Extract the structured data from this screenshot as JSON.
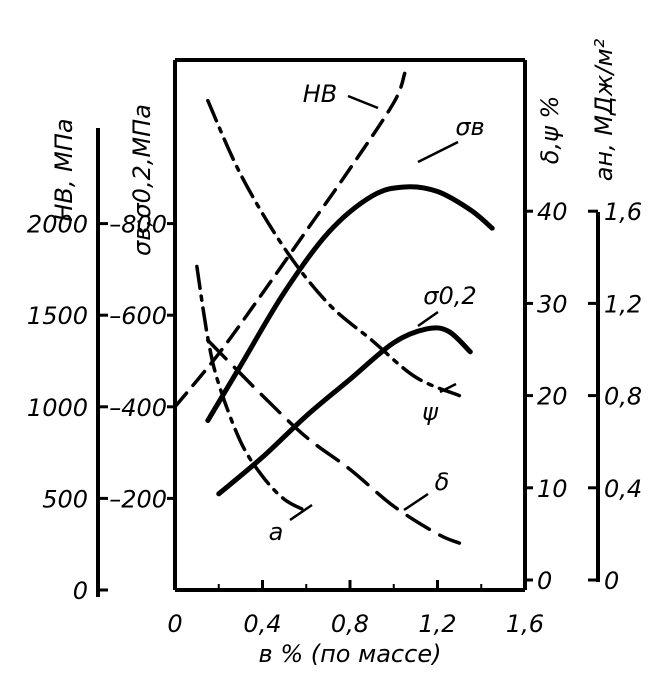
{
  "chart_data": {
    "type": "line",
    "xlabel": "в % (по массе)",
    "xticks": [
      "0",
      "0,4",
      "0,8",
      "1,2",
      "1,6"
    ],
    "xlim": [
      0,
      1.6
    ],
    "axes": {
      "hb": {
        "title": "НВ, МПа",
        "ticks": [
          "0",
          "500",
          "1000",
          "1500",
          "2000"
        ],
        "range": [
          0,
          2500
        ]
      },
      "strength": {
        "title": "σв;σ0,2,МПа",
        "ticks": [
          "200",
          "400",
          "600",
          "800"
        ],
        "range": [
          0,
          1000
        ]
      },
      "ductility": {
        "title": "δ,ψ %",
        "ticks": [
          "0",
          "10",
          "20",
          "30",
          "40"
        ],
        "range": [
          0,
          50
        ]
      },
      "impact": {
        "title": "aн, МДж/м²",
        "ticks": [
          "0",
          "0,4",
          "0,8",
          "1,2",
          "1,6"
        ],
        "range": [
          0,
          2.0
        ]
      }
    },
    "series": [
      {
        "name": "НВ",
        "axis": "hb",
        "style": "dashed",
        "x": [
          0.0,
          0.2,
          0.4,
          0.6,
          0.8,
          1.0,
          1.05
        ],
        "values": [
          1000,
          1290,
          1620,
          1960,
          2300,
          2660,
          2820
        ]
      },
      {
        "name": "σв",
        "axis": "strength",
        "style": "solid",
        "x": [
          0.15,
          0.3,
          0.5,
          0.7,
          0.9,
          1.05,
          1.2,
          1.35,
          1.45
        ],
        "values": [
          370,
          490,
          650,
          780,
          860,
          880,
          870,
          830,
          790
        ]
      },
      {
        "name": "σ0,2",
        "axis": "strength",
        "style": "solid",
        "x": [
          0.2,
          0.4,
          0.6,
          0.8,
          1.0,
          1.15,
          1.25,
          1.35
        ],
        "values": [
          210,
          290,
          380,
          460,
          540,
          570,
          565,
          520
        ]
      },
      {
        "name": "ψ",
        "axis": "ductility",
        "style": "dashdot",
        "x": [
          0.15,
          0.3,
          0.5,
          0.7,
          0.9,
          1.1,
          1.3
        ],
        "values": [
          52,
          44,
          36,
          30,
          26,
          22,
          20
        ]
      },
      {
        "name": "δ",
        "axis": "ductility",
        "style": "longdash",
        "x": [
          0.15,
          0.4,
          0.6,
          0.8,
          1.0,
          1.2,
          1.3
        ],
        "values": [
          26,
          20,
          15.5,
          12,
          8,
          5,
          4
        ]
      },
      {
        "name": "a",
        "axis": "impact",
        "style": "dashdot",
        "x": [
          0.1,
          0.15,
          0.2,
          0.3,
          0.4,
          0.5,
          0.6
        ],
        "values": [
          1.36,
          1.05,
          0.85,
          0.6,
          0.45,
          0.35,
          0.3
        ]
      }
    ]
  }
}
